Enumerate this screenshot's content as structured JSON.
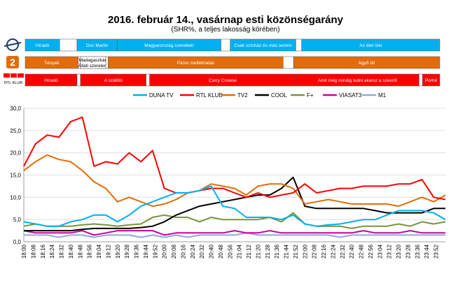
{
  "title": "2016. február 14., vasárnap esti közönségarány",
  "subtitle": "(SHR%, a teljes lakosság körében)",
  "channel_logos": {
    "m1_logo": "M1 logo",
    "tv2_logo": "2",
    "rtl_logo": "RTL KLUB"
  },
  "colors": {
    "m1_band": "#00b0f0",
    "tv2_band": "#e36c09",
    "rtl_band": "#ff0000"
  },
  "schedules": [
    {
      "row": "m1",
      "programs": [
        {
          "name": "Híradó",
          "start": "18:00",
          "end": "18:30"
        },
        {
          "name": "",
          "start": "18:30",
          "end": "18:45"
        },
        {
          "name": "Doc Martin",
          "start": "18:45",
          "end": "19:20"
        },
        {
          "name": "Magyarország szeretlek!",
          "start": "19:20",
          "end": "20:50"
        },
        {
          "name": "",
          "start": "20:50",
          "end": "20:58"
        },
        {
          "name": "Csak színház és más semmi",
          "start": "20:58",
          "end": "21:55"
        },
        {
          "name": "",
          "start": "21:55",
          "end": "22:00"
        },
        {
          "name": "Az élet ízei",
          "start": "22:00",
          "end": "24:00"
        }
      ]
    },
    {
      "row": "tv2",
      "programs": [
        {
          "name": "Tények",
          "start": "18:00",
          "end": "18:46"
        },
        {
          "name": "",
          "start": "18:46",
          "end": "18:48"
        },
        {
          "name": "Madagaszkár: Állati szerelem",
          "start": "18:48",
          "end": "19:10"
        },
        {
          "name": "",
          "start": "19:10",
          "end": "19:12"
        },
        {
          "name": "Páros mellékhatás",
          "start": "19:12",
          "end": "21:44"
        },
        {
          "name": "",
          "start": "21:44",
          "end": "21:53"
        },
        {
          "name": "Agyő öt!",
          "start": "21:53",
          "end": "24:00"
        }
      ]
    },
    {
      "row": "rtl",
      "programs": [
        {
          "name": "Híradó",
          "start": "18:00",
          "end": "18:45"
        },
        {
          "name": "",
          "start": "18:45",
          "end": "18:48"
        },
        {
          "name": "A szállító",
          "start": "18:48",
          "end": "19:45"
        },
        {
          "name": "",
          "start": "19:45",
          "end": "19:48"
        },
        {
          "name": "Carry Crowse",
          "start": "19:48",
          "end": "21:55"
        },
        {
          "name": "Amit még mindig tudni akarsz a szexről",
          "start": "21:55",
          "end": "23:42"
        },
        {
          "name": "",
          "start": "23:42",
          "end": "23:45"
        },
        {
          "name": "Portré",
          "start": "23:45",
          "end": "24:00"
        }
      ]
    }
  ],
  "chart_data": {
    "type": "line",
    "title": "2016. február 14., vasárnap esti közönségarány",
    "subtitle": "(SHR%, a teljes lakosság körében)",
    "xlabel": "",
    "ylabel": "",
    "ylim": [
      0,
      30
    ],
    "yticks": [
      "0,0",
      "5,0",
      "10,0",
      "15,0",
      "20,0",
      "25,0",
      "30,0"
    ],
    "xticks": [
      "18:00",
      "18:08",
      "18:16",
      "18:24",
      "18:32",
      "18:40",
      "18:48",
      "18:56",
      "19:04",
      "19:12",
      "19:20",
      "19:28",
      "19:36",
      "19:44",
      "19:52",
      "20:00",
      "20:08",
      "20:16",
      "20:24",
      "20:32",
      "20:40",
      "20:48",
      "20:56",
      "21:04",
      "21:12",
      "21:20",
      "21:28",
      "21:36",
      "21:44",
      "21:52",
      "22:00",
      "22:08",
      "22:16",
      "22:24",
      "22:32",
      "22:40",
      "22:48",
      "22:56",
      "23:04",
      "23:12",
      "23:20",
      "23:28",
      "23:36",
      "23:44",
      "23:52"
    ],
    "grid": true,
    "legend_position": "top",
    "x": [
      "18:00",
      "18:10",
      "18:20",
      "18:30",
      "18:40",
      "18:50",
      "19:00",
      "19:10",
      "19:20",
      "19:30",
      "19:40",
      "19:50",
      "20:00",
      "20:10",
      "20:20",
      "20:30",
      "20:40",
      "20:50",
      "21:00",
      "21:10",
      "21:20",
      "21:30",
      "21:40",
      "21:50",
      "22:00",
      "22:10",
      "22:20",
      "22:30",
      "22:40",
      "22:50",
      "23:00",
      "23:10",
      "23:20",
      "23:30",
      "23:40",
      "23:50",
      "24:00"
    ],
    "series": [
      {
        "name": "DUNA TV",
        "color": "#00b0f0",
        "values": [
          4.5,
          4.0,
          3.5,
          3.5,
          4.5,
          5.0,
          6.0,
          6.0,
          4.5,
          6.0,
          8.0,
          9.0,
          10.0,
          11.0,
          11.0,
          11.5,
          12.5,
          8.0,
          7.5,
          5.5,
          5.5,
          5.5,
          5.0,
          6.0,
          4.0,
          3.5,
          3.8,
          4.0,
          4.5,
          5.0,
          5.0,
          6.0,
          7.0,
          7.0,
          7.0,
          6.5,
          5.0
        ]
      },
      {
        "name": "RTL KLUB",
        "color": "#ff0000",
        "values": [
          17.0,
          22.0,
          24.0,
          23.5,
          27.0,
          28.0,
          17.0,
          18.0,
          17.5,
          20.0,
          18.0,
          20.5,
          12.0,
          11.0,
          11.0,
          11.5,
          12.0,
          12.0,
          11.0,
          10.0,
          11.0,
          10.0,
          10.5,
          11.0,
          13.0,
          11.0,
          11.5,
          12.0,
          12.0,
          12.5,
          12.5,
          12.5,
          13.0,
          13.0,
          14.0,
          10.0,
          9.5
        ]
      },
      {
        "name": "TV2",
        "color": "#e36c09",
        "values": [
          16.0,
          18.0,
          19.5,
          18.5,
          18.0,
          16.0,
          13.5,
          12.0,
          9.0,
          10.0,
          9.0,
          8.0,
          8.5,
          9.5,
          11.0,
          11.5,
          13.0,
          12.5,
          12.0,
          10.5,
          12.5,
          13.0,
          13.0,
          12.0,
          8.5,
          9.0,
          9.5,
          9.0,
          8.5,
          8.5,
          8.5,
          8.5,
          8.0,
          9.0,
          10.0,
          9.0,
          10.5
        ]
      },
      {
        "name": "COOL",
        "color": "#000000",
        "values": [
          2.5,
          2.5,
          2.5,
          2.5,
          2.5,
          2.8,
          3.0,
          3.0,
          3.0,
          3.0,
          3.2,
          3.5,
          4.5,
          6.0,
          7.0,
          8.0,
          8.5,
          9.0,
          9.5,
          10.0,
          10.5,
          10.5,
          12.0,
          14.5,
          8.0,
          7.5,
          7.5,
          7.5,
          7.5,
          7.5,
          7.0,
          6.5,
          6.5,
          6.5,
          6.5,
          7.5,
          7.5
        ]
      },
      {
        "name": "F+",
        "color": "#77933c",
        "values": [
          3.5,
          4.0,
          3.5,
          3.5,
          3.5,
          3.8,
          4.0,
          3.8,
          3.5,
          3.8,
          4.0,
          5.5,
          6.0,
          5.5,
          5.5,
          4.5,
          5.5,
          5.0,
          5.0,
          5.0,
          5.0,
          5.5,
          4.5,
          6.5,
          4.0,
          3.5,
          3.5,
          3.5,
          3.0,
          3.5,
          3.5,
          3.5,
          4.0,
          3.5,
          4.5,
          4.0,
          4.5
        ]
      },
      {
        "name": "VIASAT3",
        "color": "#cc0099",
        "values": [
          2.5,
          2.0,
          2.0,
          2.0,
          2.0,
          2.5,
          1.5,
          2.0,
          2.5,
          2.5,
          2.5,
          2.5,
          1.5,
          2.0,
          2.0,
          2.0,
          2.0,
          2.0,
          2.5,
          2.0,
          2.0,
          2.5,
          2.0,
          2.0,
          2.0,
          2.0,
          2.0,
          2.0,
          2.0,
          2.5,
          2.0,
          2.0,
          2.0,
          2.5,
          2.0,
          2.0,
          2.0
        ]
      },
      {
        "name": "M1",
        "color": "#8ea9db",
        "values": [
          1.5,
          1.5,
          1.5,
          1.0,
          1.5,
          1.5,
          1.0,
          1.5,
          1.5,
          1.5,
          1.0,
          1.5,
          1.0,
          1.5,
          1.0,
          1.5,
          1.5,
          1.5,
          1.5,
          2.0,
          1.5,
          1.5,
          1.5,
          1.5,
          1.5,
          1.5,
          1.5,
          1.0,
          1.5,
          1.5,
          1.5,
          1.5,
          1.5,
          1.5,
          1.5,
          1.5,
          1.5
        ]
      }
    ]
  }
}
